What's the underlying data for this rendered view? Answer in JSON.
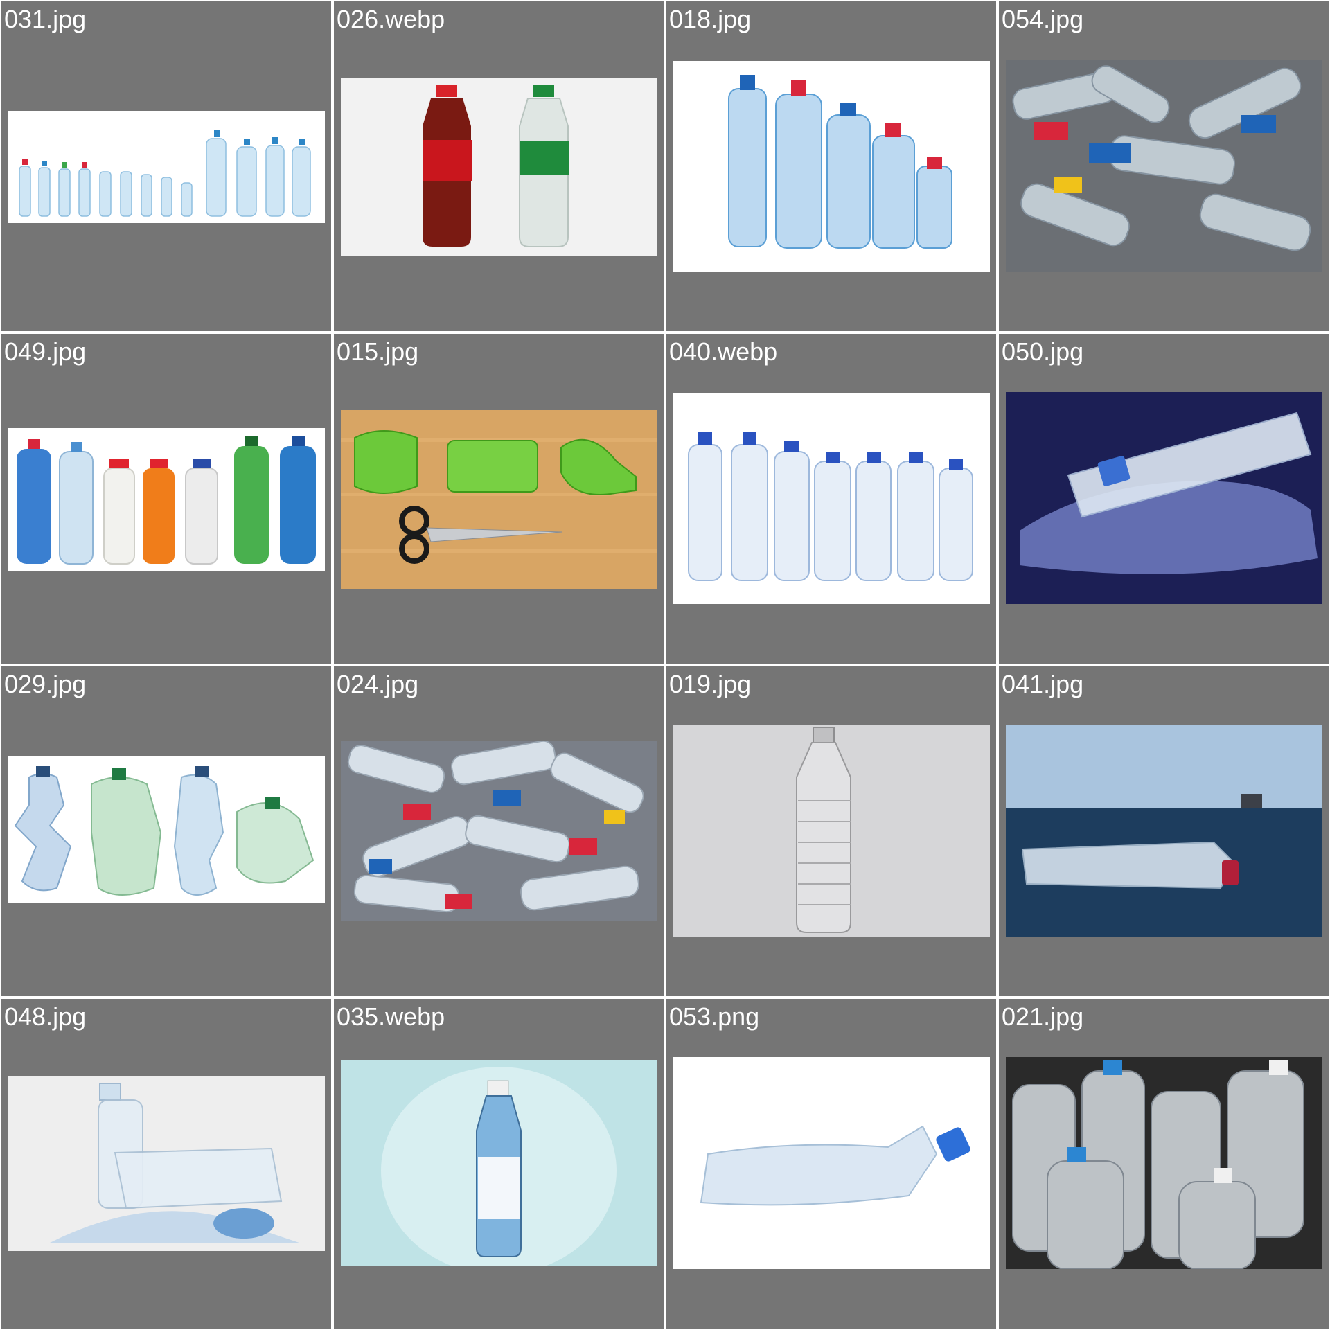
{
  "grid": {
    "columns": 4,
    "rows": 4,
    "cell_background": "#757575",
    "label_color": "#ffffff",
    "tiles": [
      {
        "filename": "031.jpg",
        "thumbnail": "row-of-water-bottles-sizes",
        "background": "#ffffff"
      },
      {
        "filename": "026.webp",
        "thumbnail": "cola-and-lemon-soda-bottles",
        "background": "#f2f2f2"
      },
      {
        "filename": "018.jpg",
        "thumbnail": "five-blue-water-bottles",
        "background": "#ffffff"
      },
      {
        "filename": "054.jpg",
        "thumbnail": "pile-of-plastic-bottles",
        "background": "#6b6f74"
      },
      {
        "filename": "049.jpg",
        "thumbnail": "colored-plastic-bottles-row",
        "background": "#ffffff"
      },
      {
        "filename": "015.jpg",
        "thumbnail": "cut-green-bottle-with-scissors",
        "background": "#d7a35e"
      },
      {
        "filename": "040.webp",
        "thumbnail": "seven-water-bottles-row",
        "background": "#ffffff"
      },
      {
        "filename": "050.jpg",
        "thumbnail": "bottle-on-pet-flakes",
        "background": "#1c1f55"
      },
      {
        "filename": "029.jpg",
        "thumbnail": "crushed-plastic-bottles",
        "background": "#ffffff"
      },
      {
        "filename": "024.jpg",
        "thumbnail": "heap-of-colorful-bottles",
        "background": "#7a7f88"
      },
      {
        "filename": "019.jpg",
        "thumbnail": "single-empty-clear-bottle",
        "background": "#d6d6d8"
      },
      {
        "filename": "041.jpg",
        "thumbnail": "bottle-floating-in-sea",
        "background": "#3d6a96"
      },
      {
        "filename": "048.jpg",
        "thumbnail": "bottles-flakes-and-pellets",
        "background": "#eeeeee"
      },
      {
        "filename": "035.webp",
        "thumbnail": "pure-water-bottle-on-teal",
        "background": "#bfe3e6"
      },
      {
        "filename": "053.png",
        "thumbnail": "crumpled-bottle-blue-cap",
        "background": "#ffffff"
      },
      {
        "filename": "021.jpg",
        "thumbnail": "clear-bottles-closeup",
        "background": "#2a2a2a"
      }
    ]
  }
}
